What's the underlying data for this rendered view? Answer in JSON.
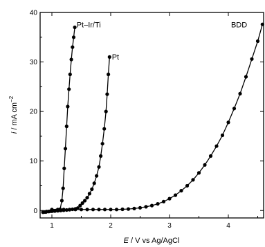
{
  "chart_data": {
    "type": "scatter",
    "title": "",
    "xlabel": {
      "var": "E",
      "rest": " / V vs Ag/AgCl"
    },
    "ylabel": {
      "var": "i",
      "rest": " / mA cm",
      "sup": "−2"
    },
    "xlim": [
      0.8,
      4.6
    ],
    "ylim": [
      -1.5,
      40
    ],
    "xticks": [
      1,
      2,
      3,
      4
    ],
    "yticks": [
      0,
      10,
      20,
      30,
      40
    ],
    "grid": false,
    "legend": "none (series labelled at line ends)",
    "series": [
      {
        "name": "Pt–Ir/Ti",
        "label_at": [
          1.42,
          37.0
        ],
        "points": [
          [
            0.85,
            -0.3
          ],
          [
            0.88,
            -0.3
          ],
          [
            0.91,
            -0.2
          ],
          [
            0.94,
            -0.2
          ],
          [
            0.97,
            -0.15
          ],
          [
            1.0,
            -0.1
          ],
          [
            1.03,
            -0.05
          ],
          [
            1.06,
            0.0
          ],
          [
            1.09,
            0.05
          ],
          [
            1.12,
            0.1
          ],
          [
            1.14,
            0.25
          ],
          [
            1.17,
            2.0
          ],
          [
            1.19,
            4.5
          ],
          [
            1.21,
            8.5
          ],
          [
            1.23,
            12.5
          ],
          [
            1.25,
            17.0
          ],
          [
            1.27,
            21.0
          ],
          [
            1.29,
            24.5
          ],
          [
            1.31,
            27.5
          ],
          [
            1.33,
            30.5
          ],
          [
            1.35,
            33.0
          ],
          [
            1.37,
            35.0
          ],
          [
            1.39,
            37.0
          ]
        ]
      },
      {
        "name": "Pt",
        "label_at": [
          2.02,
          30.5
        ],
        "points": [
          [
            0.85,
            -0.35
          ],
          [
            0.9,
            -0.3
          ],
          [
            0.95,
            -0.2
          ],
          [
            1.0,
            -0.15
          ],
          [
            1.05,
            -0.1
          ],
          [
            1.1,
            -0.05
          ],
          [
            1.15,
            0.0
          ],
          [
            1.2,
            0.05
          ],
          [
            1.25,
            0.1
          ],
          [
            1.3,
            0.15
          ],
          [
            1.35,
            0.25
          ],
          [
            1.4,
            0.35
          ],
          [
            1.44,
            0.5
          ],
          [
            1.48,
            1.0
          ],
          [
            1.52,
            1.5
          ],
          [
            1.56,
            2.0
          ],
          [
            1.6,
            2.6
          ],
          [
            1.64,
            3.4
          ],
          [
            1.68,
            4.3
          ],
          [
            1.72,
            5.5
          ],
          [
            1.76,
            7.0
          ],
          [
            1.8,
            8.8
          ],
          [
            1.83,
            11.0
          ],
          [
            1.86,
            13.5
          ],
          [
            1.89,
            16.5
          ],
          [
            1.92,
            20.0
          ],
          [
            1.94,
            23.5
          ],
          [
            1.96,
            27.5
          ],
          [
            1.98,
            31.0
          ]
        ]
      },
      {
        "name": "BDD",
        "label_at": [
          4.32,
          37.0
        ],
        "points": [
          [
            1.0,
            0.2
          ],
          [
            1.1,
            0.2
          ],
          [
            1.2,
            0.2
          ],
          [
            1.3,
            0.2
          ],
          [
            1.4,
            0.2
          ],
          [
            1.5,
            0.2
          ],
          [
            1.6,
            0.2
          ],
          [
            1.7,
            0.2
          ],
          [
            1.8,
            0.2
          ],
          [
            1.9,
            0.2
          ],
          [
            2.0,
            0.2
          ],
          [
            2.1,
            0.2
          ],
          [
            2.2,
            0.25
          ],
          [
            2.3,
            0.3
          ],
          [
            2.4,
            0.4
          ],
          [
            2.5,
            0.55
          ],
          [
            2.6,
            0.75
          ],
          [
            2.7,
            1.0
          ],
          [
            2.8,
            1.35
          ],
          [
            2.9,
            1.8
          ],
          [
            3.0,
            2.4
          ],
          [
            3.1,
            3.1
          ],
          [
            3.2,
            4.0
          ],
          [
            3.3,
            5.0
          ],
          [
            3.4,
            6.2
          ],
          [
            3.5,
            7.6
          ],
          [
            3.6,
            9.2
          ],
          [
            3.7,
            11.0
          ],
          [
            3.8,
            13.0
          ],
          [
            3.9,
            15.2
          ],
          [
            4.0,
            17.8
          ],
          [
            4.1,
            20.6
          ],
          [
            4.2,
            23.6
          ],
          [
            4.3,
            27.0
          ],
          [
            4.4,
            30.6
          ],
          [
            4.5,
            34.2
          ],
          [
            4.58,
            37.6
          ]
        ]
      }
    ]
  }
}
